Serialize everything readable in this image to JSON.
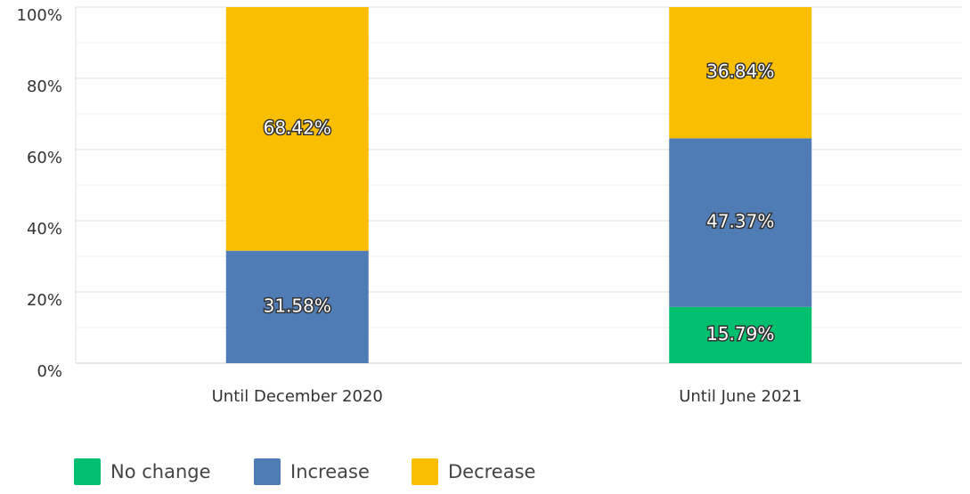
{
  "chart_data": {
    "type": "stacked_bar",
    "categories": [
      "Until December 2020",
      "Until June 2021"
    ],
    "series": [
      {
        "name": "No change",
        "color": "#00bf6f",
        "values": [
          0,
          15.79
        ],
        "value_labels": [
          null,
          "15.79%"
        ]
      },
      {
        "name": "Increase",
        "color": "#507cb6",
        "values": [
          31.58,
          47.37
        ],
        "value_labels": [
          "31.58%",
          "47.37%"
        ]
      },
      {
        "name": "Decrease",
        "color": "#f9be00",
        "values": [
          68.42,
          36.84
        ],
        "value_labels": [
          "68.42%",
          "36.84%"
        ]
      }
    ],
    "ylim": [
      0,
      100
    ],
    "yticks": [
      {
        "value": 0,
        "label": "0%"
      },
      {
        "value": 20,
        "label": "20%"
      },
      {
        "value": 40,
        "label": "40%"
      },
      {
        "value": 60,
        "label": "60%"
      },
      {
        "value": 80,
        "label": "80%"
      },
      {
        "value": 100,
        "label": "100%"
      }
    ],
    "minor_yticks": [
      10,
      30,
      50,
      70,
      90
    ],
    "grid": true,
    "legend": "bottom-left"
  }
}
